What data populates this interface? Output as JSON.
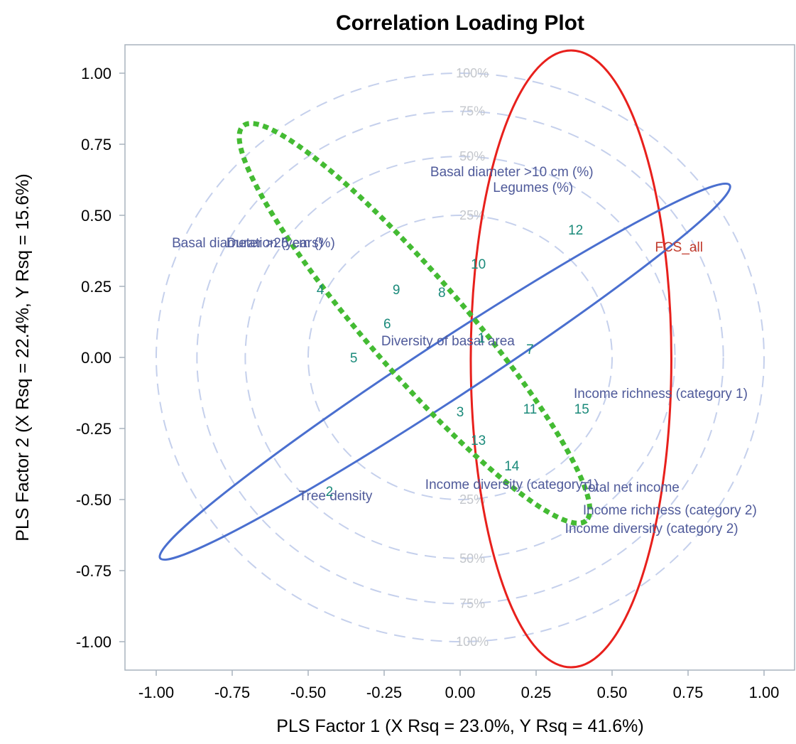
{
  "chart_data": {
    "type": "scatter",
    "title": "Correlation Loading Plot",
    "xlabel": "PLS Factor 1 (X Rsq = 23.0%, Y Rsq = 41.6%)",
    "ylabel": "PLS Factor 2 (X Rsq = 22.4%, Y Rsq = 15.6%)",
    "xlim": [
      -1.12,
      1.12
    ],
    "ylim": [
      -1.1,
      1.1
    ],
    "xticks": [
      "-1.00",
      "-0.75",
      "-0.50",
      "-0.25",
      "0.00",
      "0.25",
      "0.50",
      "0.75",
      "1.00"
    ],
    "yticks": [
      "1.00",
      "0.75",
      "0.50",
      "0.25",
      "0.00",
      "-0.25",
      "-0.50",
      "-0.75",
      "-1.00"
    ],
    "circles": [
      {
        "r": 1.0,
        "label": "100%"
      },
      {
        "r": 0.866,
        "label": "75%"
      },
      {
        "r": 0.707,
        "label": "50%"
      },
      {
        "r": 0.5,
        "label": "25%"
      }
    ],
    "x_variables": [
      {
        "label": "Basal diameter >10 cm (%)",
        "x": 0.17,
        "y": 0.655
      },
      {
        "label": "Legumes (%)",
        "x": 0.24,
        "y": 0.6
      },
      {
        "label": "Basal diameter >25 cm (%)",
        "x": -0.68,
        "y": 0.405
      },
      {
        "label": "Duration (years)",
        "x": -0.61,
        "y": 0.405
      },
      {
        "label": "Diversity of basal area",
        "x": -0.04,
        "y": 0.06
      },
      {
        "label": "Income richness (category 1)",
        "x": 0.66,
        "y": -0.125
      },
      {
        "label": "Tree density",
        "x": -0.41,
        "y": -0.485
      },
      {
        "label": "Income diversity (category 1)",
        "x": 0.17,
        "y": -0.445
      },
      {
        "label": "Total net income",
        "x": 0.56,
        "y": -0.455
      },
      {
        "label": "Income richness (category 2)",
        "x": 0.69,
        "y": -0.535
      },
      {
        "label": "Income diversity (category 2)",
        "x": 0.63,
        "y": -0.6
      }
    ],
    "y_variables": [
      {
        "label": "FCS_all",
        "x": 0.72,
        "y": 0.39
      }
    ],
    "observations": [
      {
        "label": "1",
        "x": 0.07,
        "y": 0.07
      },
      {
        "label": "2",
        "x": -0.43,
        "y": -0.47
      },
      {
        "label": "3",
        "x": 0.0,
        "y": -0.19
      },
      {
        "label": "4",
        "x": -0.46,
        "y": 0.24
      },
      {
        "label": "5",
        "x": -0.35,
        "y": 0.0
      },
      {
        "label": "6",
        "x": -0.24,
        "y": 0.12
      },
      {
        "label": "7",
        "x": 0.23,
        "y": 0.03
      },
      {
        "label": "8",
        "x": -0.06,
        "y": 0.23
      },
      {
        "label": "9",
        "x": -0.21,
        "y": 0.24
      },
      {
        "label": "10",
        "x": 0.06,
        "y": 0.33
      },
      {
        "label": "11",
        "x": 0.23,
        "y": -0.18
      },
      {
        "label": "12",
        "x": 0.38,
        "y": 0.45
      },
      {
        "label": "13",
        "x": 0.06,
        "y": -0.29
      },
      {
        "label": "14",
        "x": 0.17,
        "y": -0.38
      },
      {
        "label": "15",
        "x": 0.4,
        "y": -0.18
      }
    ],
    "highlight_ellipses": [
      {
        "name": "red",
        "color": "#e8201c",
        "style": "solid",
        "cx": 0.365,
        "cy": -0.005,
        "rx": 0.33,
        "ry": 1.085,
        "angle": 0
      },
      {
        "name": "blue",
        "color": "#4a6fcf",
        "style": "solid",
        "cx": -0.05,
        "cy": -0.05,
        "rx": 1.12,
        "ry": 0.1,
        "angle": -33.2
      },
      {
        "name": "green",
        "color": "#44bb33",
        "style": "dotted",
        "cx": -0.15,
        "cy": 0.12,
        "rx": 0.86,
        "ry": 0.17,
        "angle": 49
      }
    ],
    "grid": false,
    "colors": {
      "axis_frame": "#a9b3bd",
      "circles": "#c5d0ec",
      "x_variables": "#4f5a9a",
      "y_variables": "#c0392b",
      "observations": "#1a8a7a"
    }
  }
}
